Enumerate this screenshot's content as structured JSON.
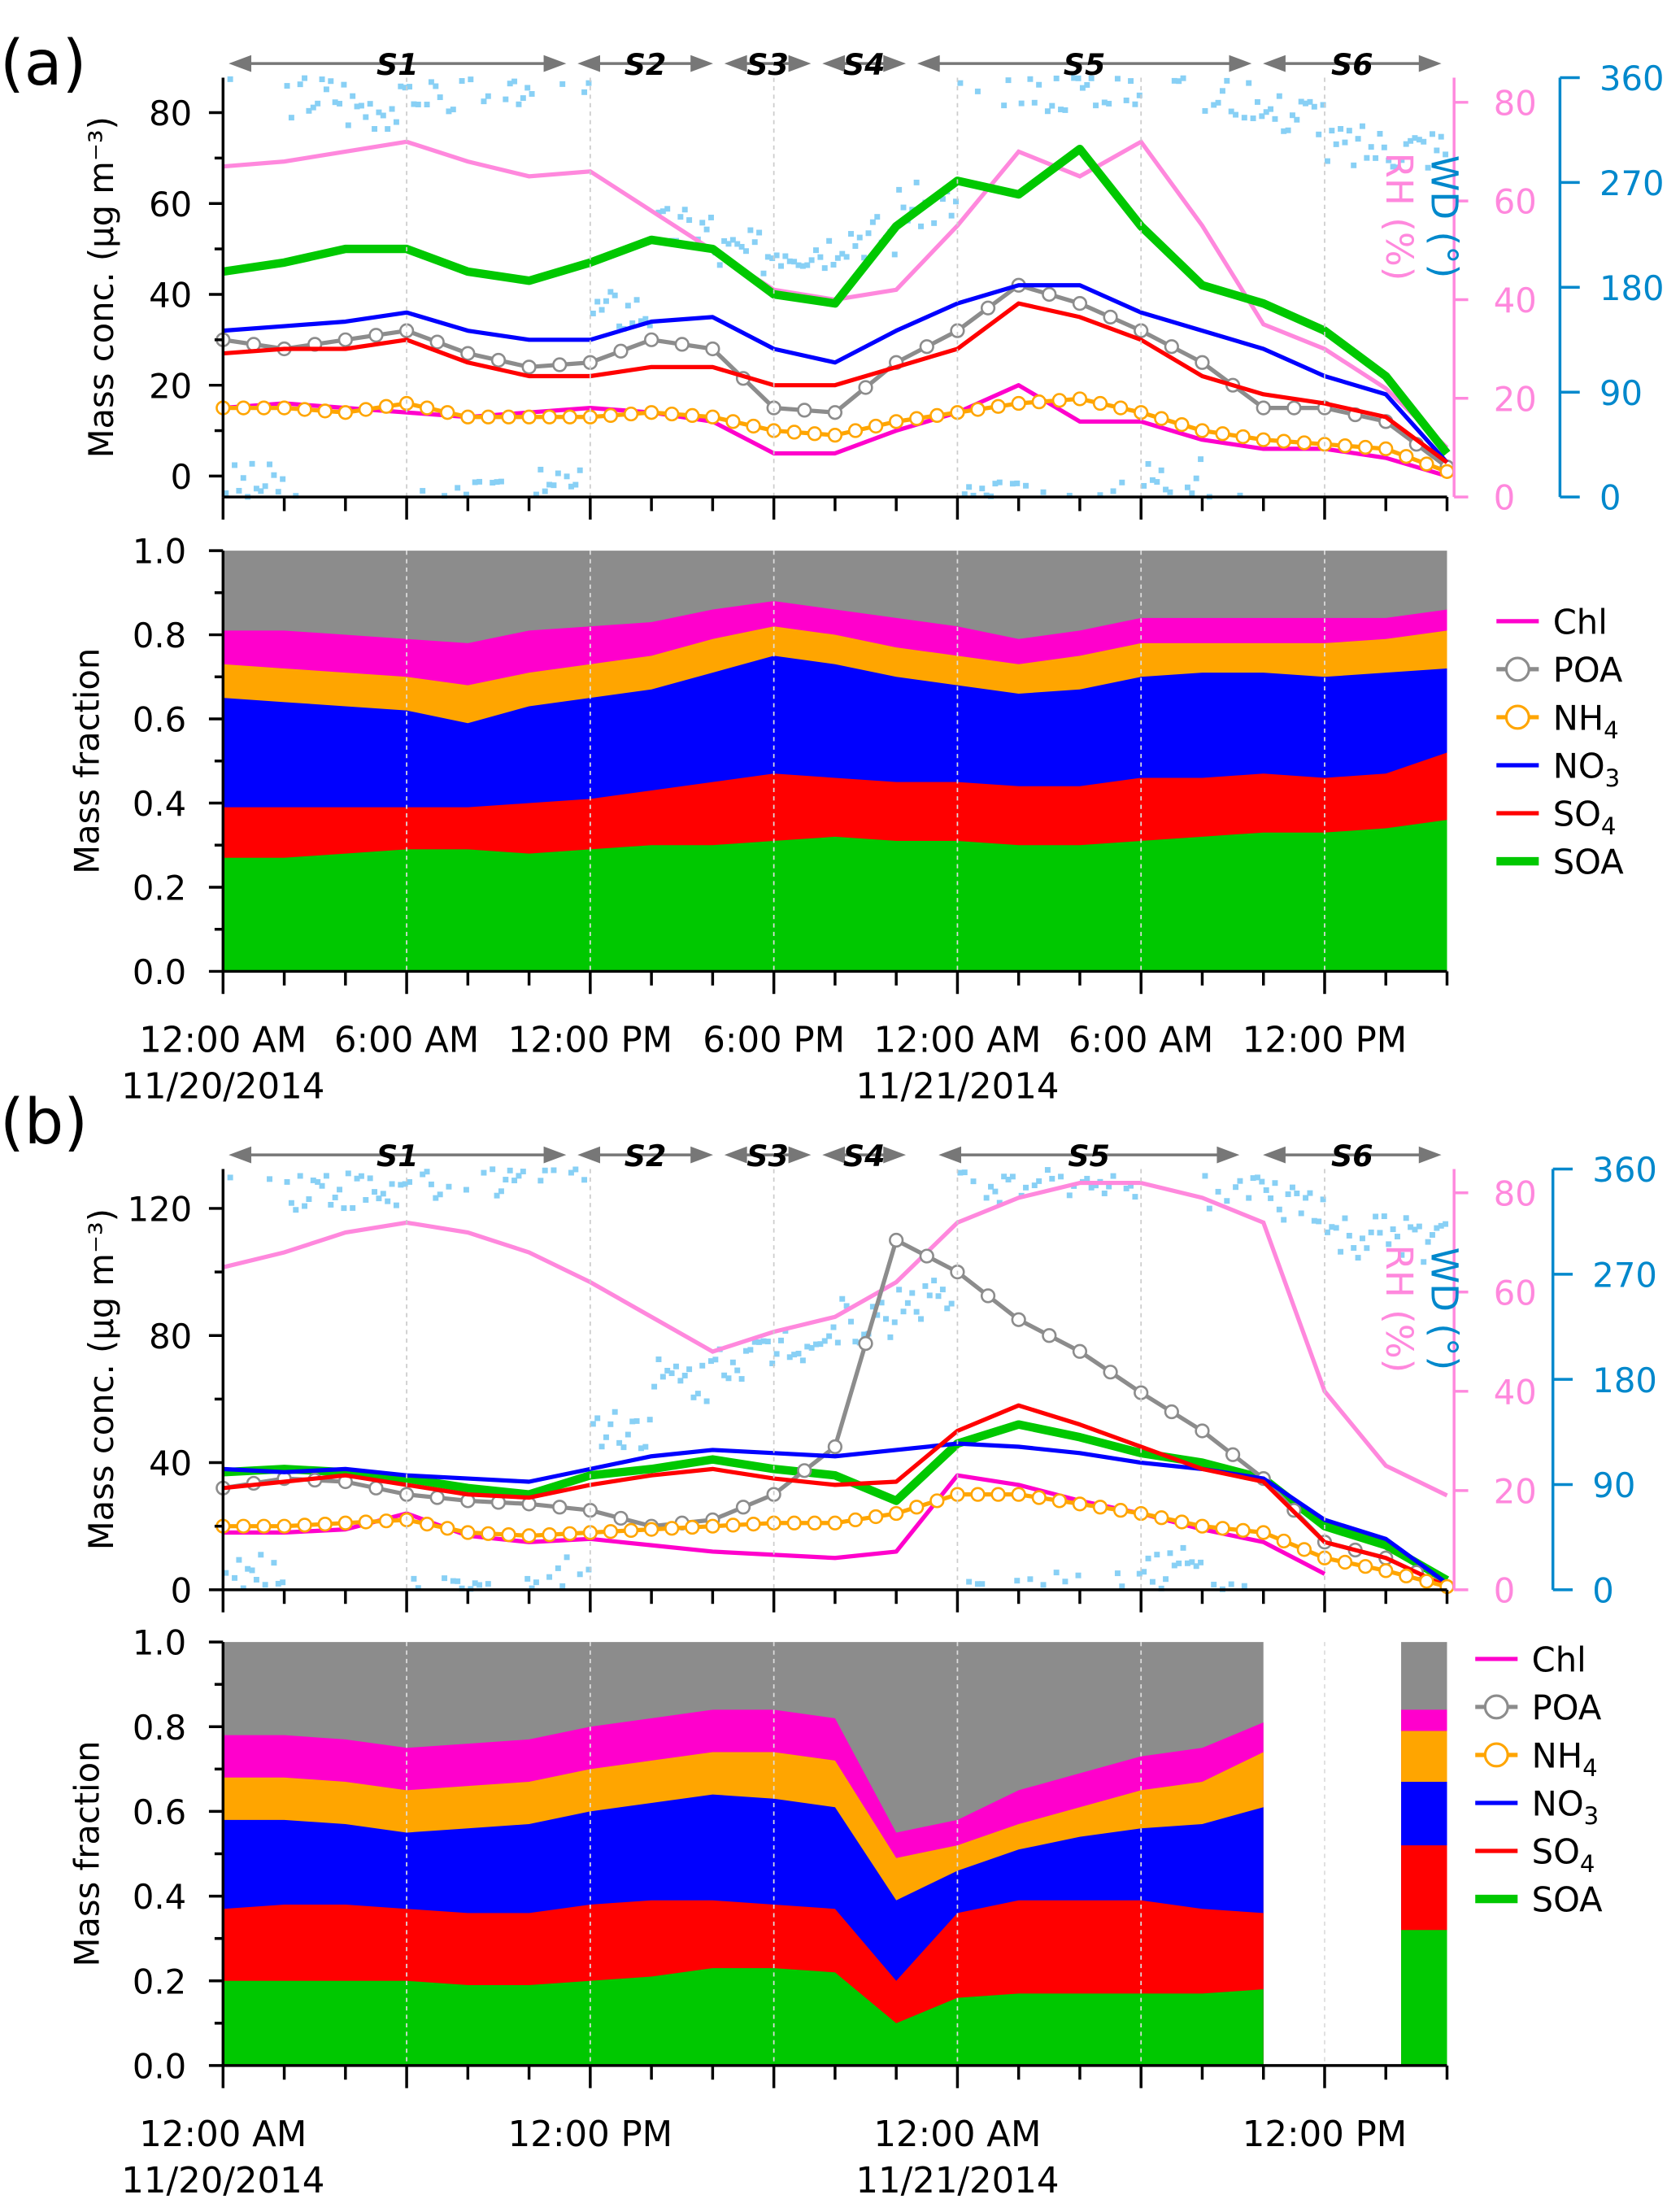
{
  "colors": {
    "SOA": "#00c800",
    "SO4": "#ff0000",
    "NO3": "#0000ff",
    "NH4": "#ffa500",
    "Chl": "#ff00cc",
    "POA": "#8c8c8c",
    "RH": "#ff88dd",
    "WD": "#88d0f5",
    "WD_axis": "#0088cc"
  },
  "chart_data": [
    {
      "panel_label": "(a)",
      "type": "line",
      "x_unit": "hours from 12:00 AM 11/20/2014",
      "xlim": [
        0,
        40
      ],
      "x_ticks": [
        {
          "h": 0,
          "label": "12:00 AM",
          "date": "11/20/2014"
        },
        {
          "h": 6,
          "label": "6:00 AM"
        },
        {
          "h": 12,
          "label": "12:00 PM"
        },
        {
          "h": 18,
          "label": "6:00 PM"
        },
        {
          "h": 24,
          "label": "12:00 AM",
          "date": "11/21/2014"
        },
        {
          "h": 30,
          "label": "6:00 AM"
        },
        {
          "h": 36,
          "label": "12:00 PM"
        }
      ],
      "periods": [
        {
          "label": "S1",
          "from": 0,
          "to": 11.4
        },
        {
          "label": "S2",
          "from": 11.4,
          "to": 16.2
        },
        {
          "label": "S3",
          "from": 16.2,
          "to": 19.4
        },
        {
          "label": "S4",
          "from": 19.4,
          "to": 22.5
        },
        {
          "label": "S5",
          "from": 22.5,
          "to": 33.8
        },
        {
          "label": "S6",
          "from": 33.8,
          "to": 40
        }
      ],
      "concentration": {
        "ylabel": "Mass conc. (μg m⁻³)",
        "ylim": [
          -4.6,
          87.7
        ],
        "yticks": [
          0,
          20,
          40,
          60,
          80
        ],
        "x": [
          0,
          2,
          4,
          6,
          8,
          10,
          12,
          14,
          16,
          18,
          20,
          22,
          24,
          26,
          28,
          30,
          32,
          34,
          36,
          38,
          40
        ],
        "series": [
          {
            "name": "SOA",
            "values": [
              45,
              47,
              50,
              50,
              45,
              43,
              47,
              52,
              50,
              40,
              38,
              55,
              65,
              62,
              72,
              55,
              42,
              38,
              32,
              22,
              5
            ]
          },
          {
            "name": "NO3",
            "values": [
              32,
              33,
              34,
              36,
              32,
              30,
              30,
              34,
              35,
              28,
              25,
              32,
              38,
              42,
              42,
              36,
              32,
              28,
              22,
              18,
              3
            ]
          },
          {
            "name": "SO4",
            "values": [
              27,
              28,
              28,
              30,
              25,
              22,
              22,
              24,
              24,
              20,
              20,
              24,
              28,
              38,
              35,
              30,
              22,
              18,
              16,
              13,
              3
            ]
          },
          {
            "name": "POA",
            "values": [
              30,
              28,
              30,
              32,
              27,
              24,
              25,
              30,
              28,
              15,
              14,
              25,
              32,
              42,
              38,
              32,
              25,
              15,
              15,
              12,
              2
            ]
          },
          {
            "name": "NH4",
            "values": [
              15,
              15,
              14,
              16,
              13,
              13,
              13,
              14,
              13,
              10,
              9,
              12,
              14,
              16,
              17,
              14,
              10,
              8,
              7,
              6,
              1
            ]
          },
          {
            "name": "Chl",
            "values": [
              15,
              16,
              15,
              14,
              13,
              14,
              15,
              14,
              12,
              5,
              5,
              10,
              14,
              20,
              12,
              12,
              8,
              6,
              6,
              4,
              0
            ]
          }
        ],
        "RH": {
          "label": "RH (%)",
          "ylim": [
            0,
            85
          ],
          "yticks": [
            0,
            20,
            40,
            60,
            80
          ],
          "values": [
            67,
            68,
            70,
            72,
            68,
            65,
            66,
            58,
            50,
            42,
            40,
            42,
            55,
            70,
            65,
            72,
            55,
            35,
            30,
            22,
            10
          ]
        },
        "WD": {
          "label": "WD (°)",
          "ylim": [
            0,
            360
          ],
          "yticks": [
            0,
            90,
            180,
            270,
            360
          ],
          "values": [
            10,
            345,
            335,
            350,
            355,
            5,
            160,
            230,
            210,
            215,
            225,
            250,
            355,
            350,
            355,
            15,
            345,
            330,
            300,
            300,
            280
          ]
        }
      },
      "fraction": {
        "ylabel": "Mass fraction",
        "ylim": [
          0,
          1
        ],
        "yticks": [
          "0.0",
          "0.2",
          "0.4",
          "0.6",
          "0.8",
          "1.0"
        ],
        "type": "area",
        "stacked": true,
        "x": [
          0,
          2,
          4,
          6,
          8,
          10,
          12,
          14,
          16,
          18,
          20,
          22,
          24,
          26,
          28,
          30,
          32,
          34,
          36,
          38,
          40
        ],
        "series": [
          {
            "name": "SOA",
            "values": [
              0.27,
              0.27,
              0.28,
              0.29,
              0.29,
              0.28,
              0.29,
              0.3,
              0.3,
              0.31,
              0.32,
              0.31,
              0.31,
              0.3,
              0.3,
              0.31,
              0.32,
              0.33,
              0.33,
              0.34,
              0.36
            ]
          },
          {
            "name": "SO4",
            "values": [
              0.12,
              0.12,
              0.11,
              0.1,
              0.1,
              0.12,
              0.12,
              0.13,
              0.15,
              0.16,
              0.14,
              0.14,
              0.14,
              0.14,
              0.14,
              0.15,
              0.14,
              0.14,
              0.13,
              0.13,
              0.16
            ]
          },
          {
            "name": "NO3",
            "values": [
              0.26,
              0.25,
              0.24,
              0.23,
              0.2,
              0.23,
              0.24,
              0.24,
              0.26,
              0.28,
              0.27,
              0.25,
              0.23,
              0.22,
              0.23,
              0.24,
              0.25,
              0.24,
              0.24,
              0.24,
              0.2
            ]
          },
          {
            "name": "NH4",
            "values": [
              0.08,
              0.08,
              0.08,
              0.08,
              0.09,
              0.08,
              0.08,
              0.08,
              0.08,
              0.07,
              0.07,
              0.07,
              0.07,
              0.07,
              0.08,
              0.08,
              0.07,
              0.07,
              0.08,
              0.08,
              0.09
            ]
          },
          {
            "name": "Chl",
            "values": [
              0.08,
              0.09,
              0.09,
              0.09,
              0.1,
              0.1,
              0.09,
              0.08,
              0.07,
              0.06,
              0.06,
              0.07,
              0.07,
              0.06,
              0.06,
              0.06,
              0.06,
              0.06,
              0.06,
              0.05,
              0.05
            ]
          },
          {
            "name": "POA",
            "values": "remainder"
          }
        ]
      },
      "legend": [
        "Chl",
        "POA",
        "NH4",
        "NO3",
        "SO4",
        "SOA"
      ]
    },
    {
      "panel_label": "(b)",
      "type": "line",
      "x_unit": "hours from 12:00 AM 11/20/2014",
      "xlim": [
        0,
        40
      ],
      "x_ticks": [
        {
          "h": 0,
          "label": "12:00 AM",
          "date": "11/20/2014"
        },
        {
          "h": 12,
          "label": "12:00 PM"
        },
        {
          "h": 24,
          "label": "12:00 AM",
          "date": "11/21/2014"
        },
        {
          "h": 36,
          "label": "12:00 PM"
        }
      ],
      "periods": [
        {
          "label": "S1",
          "from": 0,
          "to": 11.4
        },
        {
          "label": "S2",
          "from": 11.4,
          "to": 16.2
        },
        {
          "label": "S3",
          "from": 16.2,
          "to": 19.4
        },
        {
          "label": "S4",
          "from": 19.4,
          "to": 22.5
        },
        {
          "label": "S5",
          "from": 23.2,
          "to": 33.4
        },
        {
          "label": "S6",
          "from": 33.8,
          "to": 40
        }
      ],
      "concentration": {
        "ylabel": "Mass conc. (μg m⁻³)",
        "ylim": [
          0,
          132.4
        ],
        "yticks": [
          0,
          40,
          80,
          120
        ],
        "x": [
          0,
          2,
          4,
          6,
          8,
          10,
          12,
          14,
          16,
          18,
          20,
          22,
          24,
          26,
          28,
          30,
          32,
          34,
          36,
          38,
          40
        ],
        "series": [
          {
            "name": "SOA",
            "values": [
              37,
              38,
              37,
              35,
              32,
              30,
              36,
              38,
              41,
              38,
              36,
              28,
              46,
              52,
              48,
              43,
              40,
              35,
              20,
              14,
              3
            ]
          },
          {
            "name": "NO3",
            "values": [
              38,
              37,
              38,
              36,
              35,
              34,
              38,
              42,
              44,
              43,
              42,
              44,
              46,
              45,
              43,
              40,
              38,
              35,
              22,
              16,
              2
            ]
          },
          {
            "name": "SO4",
            "values": [
              32,
              34,
              36,
              33,
              30,
              29,
              33,
              36,
              38,
              35,
              33,
              34,
              50,
              58,
              52,
              45,
              38,
              34,
              15,
              10,
              1
            ]
          },
          {
            "name": "POA",
            "values": [
              32,
              35,
              34,
              30,
              28,
              27,
              25,
              20,
              22,
              30,
              45,
              110,
              100,
              85,
              75,
              62,
              50,
              35,
              15,
              10,
              1
            ]
          },
          {
            "name": "NH4",
            "values": [
              20,
              20,
              21,
              22,
              18,
              17,
              18,
              19,
              20,
              21,
              21,
              24,
              30,
              30,
              27,
              24,
              20,
              18,
              10,
              6,
              1
            ]
          },
          {
            "name": "Chl",
            "values": [
              18,
              18,
              19,
              24,
              17,
              15,
              16,
              14,
              12,
              11,
              10,
              12,
              36,
              33,
              28,
              24,
              19,
              15,
              5,
              null,
              null
            ]
          }
        ],
        "RH": {
          "label": "RH (%)",
          "ylim": [
            0,
            84.8
          ],
          "yticks": [
            0,
            20,
            40,
            60,
            80
          ],
          "values": [
            65,
            68,
            72,
            74,
            72,
            68,
            62,
            55,
            48,
            52,
            55,
            62,
            74,
            79,
            82,
            82,
            79,
            74,
            40,
            25,
            19
          ]
        },
        "WD": {
          "label": "WD (°)",
          "ylim": [
            0,
            360
          ],
          "yticks": [
            0,
            90,
            180,
            270,
            360
          ],
          "values": [
            10,
            345,
            340,
            350,
            355,
            10,
            140,
            180,
            200,
            215,
            230,
            250,
            350,
            355,
            355,
            20,
            345,
            330,
            300,
            300,
            285
          ]
        }
      },
      "fraction": {
        "ylabel": "Mass fraction",
        "ylim": [
          0,
          1
        ],
        "yticks": [
          "0.0",
          "0.2",
          "0.4",
          "0.6",
          "0.8",
          "1.0"
        ],
        "type": "area",
        "stacked": true,
        "x": [
          0,
          2,
          4,
          6,
          8,
          10,
          12,
          14,
          16,
          18,
          20,
          22,
          24,
          26,
          28,
          30,
          32,
          34,
          36,
          38,
          40
        ],
        "series": [
          {
            "name": "SOA",
            "values": [
              0.2,
              0.2,
              0.2,
              0.2,
              0.19,
              0.19,
              0.2,
              0.21,
              0.23,
              0.23,
              0.22,
              0.1,
              0.16,
              0.17,
              0.17,
              0.17,
              0.17,
              0.18,
              null,
              null,
              0.32
            ]
          },
          {
            "name": "SO4",
            "values": [
              0.17,
              0.18,
              0.18,
              0.17,
              0.17,
              0.17,
              0.18,
              0.18,
              0.16,
              0.15,
              0.15,
              0.1,
              0.2,
              0.22,
              0.22,
              0.22,
              0.2,
              0.18,
              null,
              null,
              0.2
            ]
          },
          {
            "name": "NO3",
            "values": [
              0.21,
              0.2,
              0.19,
              0.18,
              0.2,
              0.21,
              0.22,
              0.23,
              0.25,
              0.25,
              0.24,
              0.19,
              0.1,
              0.12,
              0.15,
              0.17,
              0.2,
              0.25,
              null,
              null,
              0.15
            ]
          },
          {
            "name": "NH4",
            "values": [
              0.1,
              0.1,
              0.1,
              0.1,
              0.1,
              0.1,
              0.1,
              0.1,
              0.1,
              0.11,
              0.11,
              0.1,
              0.06,
              0.06,
              0.07,
              0.09,
              0.1,
              0.13,
              null,
              null,
              0.12
            ]
          },
          {
            "name": "Chl",
            "values": [
              0.1,
              0.1,
              0.1,
              0.1,
              0.1,
              0.1,
              0.1,
              0.1,
              0.1,
              0.1,
              0.1,
              0.06,
              0.06,
              0.08,
              0.08,
              0.08,
              0.08,
              0.07,
              null,
              null,
              0.05
            ]
          },
          {
            "name": "POA",
            "values": "remainder"
          }
        ]
      },
      "legend": [
        "Chl",
        "POA",
        "NH4",
        "NO3",
        "SO4",
        "SOA"
      ]
    }
  ]
}
